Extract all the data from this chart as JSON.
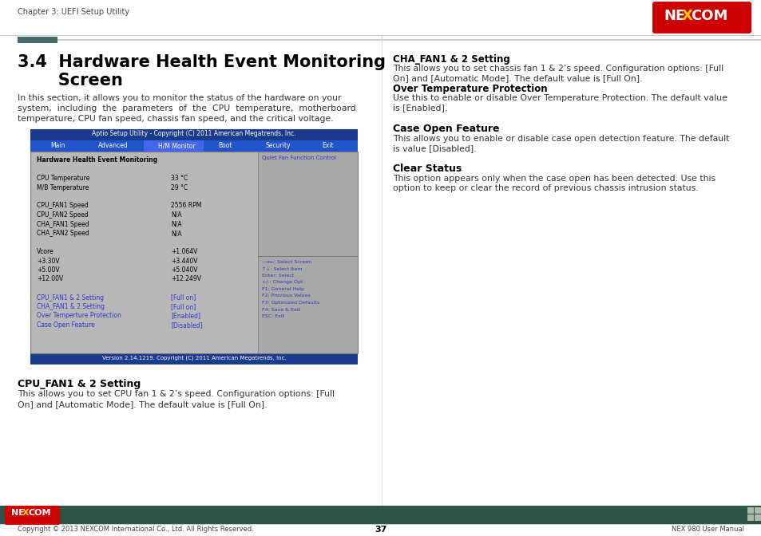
{
  "page_bg": "#ffffff",
  "header_text": "Chapter 3: UEFI Setup Utility",
  "bios_title_bar_color": "#1a3a8c",
  "bios_title_text": "Aptio Setup Utility - Copyright (C) 2011 American Megatrends, Inc.",
  "bios_nav_bg": "#2255cc",
  "bios_nav_items": [
    "Main",
    "Advanced",
    "H/M Monitor",
    "Boot",
    "Security",
    "Exit"
  ],
  "bios_nav_selected": "H/M Monitor",
  "bios_footer_text": "Version 2.14.1219. Copyright (C) 2011 American Megatrends, Inc.",
  "bios_left_content": [
    {
      "text": "Hardware Health Event Monitoring",
      "bold": true,
      "color": "#000000",
      "value": ""
    },
    {
      "text": "",
      "color": "#000000",
      "value": ""
    },
    {
      "text": "CPU Temperature",
      "color": "#000000",
      "value": "33 °C"
    },
    {
      "text": "M/B Temperature",
      "color": "#000000",
      "value": "29 °C"
    },
    {
      "text": "",
      "color": "#000000",
      "value": ""
    },
    {
      "text": "CPU_FAN1 Speed",
      "color": "#000000",
      "value": "2556 RPM"
    },
    {
      "text": "CPU_FAN2 Speed",
      "color": "#000000",
      "value": "N/A"
    },
    {
      "text": "CHA_FAN1 Speed",
      "color": "#000000",
      "value": "N/A"
    },
    {
      "text": "CHA_FAN2 Speed",
      "color": "#000000",
      "value": "N/A"
    },
    {
      "text": "",
      "color": "#000000",
      "value": ""
    },
    {
      "text": "Vcore",
      "color": "#000000",
      "value": "+1.064V"
    },
    {
      "text": "+3.30V",
      "color": "#000000",
      "value": "+3.440V"
    },
    {
      "text": "+5.00V",
      "color": "#000000",
      "value": "+5.040V"
    },
    {
      "text": "+12.00V",
      "color": "#000000",
      "value": "+12.249V"
    },
    {
      "text": "",
      "color": "#000000",
      "value": ""
    },
    {
      "text": "CPU_FAN1 & 2 Setting",
      "color": "#3333cc",
      "value": "[Full on]"
    },
    {
      "text": "CHA_FAN1 & 2 Setting",
      "color": "#3333cc",
      "value": "[Full on]"
    },
    {
      "text": "Over Temperture Protection",
      "color": "#3333cc",
      "value": "[Enabled]"
    },
    {
      "text": "Case Open Feature",
      "color": "#3333cc",
      "value": "[Disabled]"
    }
  ],
  "bios_right_top": "Quiet Fan Function Control",
  "bios_right_help": [
    "--→←: Select Screen",
    "↑↓: Select Item",
    "Enter: Select",
    "+/-: Change Opt.",
    "F1: General Help",
    "F2: Previous Values",
    "F3: Optimized Defaults",
    "F4: Save & Exit",
    "ESC: Exit"
  ],
  "title_line1": "3.4  Hardware Health Event Monitoring",
  "title_line2": "       Screen",
  "intro_text_line1": "In this section, it allows you to monitor the status of the hardware on your",
  "intro_text_line2": "system,  including  the  parameters  of  the  CPU  temperature,  motherboard",
  "intro_text_line3": "temperature, CPU fan speed, chassis fan speed, and the critical voltage.",
  "right_sections": [
    {
      "heading": "CHA_FAN1 & 2 Setting",
      "heading_bold": true,
      "body": [
        "This allows you to set chassis fan 1 & 2’s speed. Configuration options: [Full",
        "On] and [Automatic Mode]. The default value is [Full On]."
      ]
    },
    {
      "heading": "Over Temperature Protection",
      "heading_bold": true,
      "body": [
        "Use this to enable or disable Over Temperature Protection. The default value",
        "is [Enabled]."
      ]
    },
    {
      "heading": "Case Open Feature",
      "heading_bold": false,
      "body": [
        "This allows you to enable or disable case open detection feature. The default",
        "is value [Disabled]."
      ]
    },
    {
      "heading": "Clear Status",
      "heading_bold": false,
      "body": [
        "This option appears only when the case open has been detected. Use this",
        "option to keep or clear the record of previous chassis intrusion status."
      ]
    }
  ],
  "bottom_heading": "CPU_FAN1 & 2 Setting",
  "bottom_body": [
    "This allows you to set CPU fan 1 & 2’s speed. Configuration options: [Full",
    "On] and [Automatic Mode]. The default value is [Full On]."
  ],
  "footer_bar_color": "#2d5446",
  "footer_nexcom_color": "#cc0000",
  "footer_copyright": "Copyright © 2013 NEXCOM International Co., Ltd. All Rights Reserved.",
  "footer_page": "37",
  "footer_manual": "NEX 980 User Manual"
}
